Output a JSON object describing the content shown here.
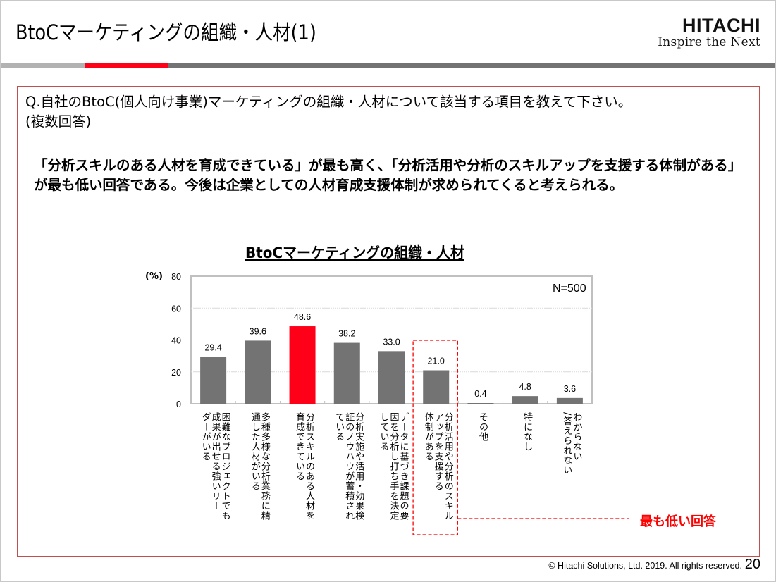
{
  "slide": {
    "title": "BtoCマーケティングの組織・人材(1)",
    "logo": {
      "name": "HITACHI",
      "tagline": "Inspire the Next"
    },
    "question": "Q.自社のBtoC(個人向け事業)マーケティングの組織・人材について該当する項目を教えて下さい。",
    "question_note": "(複数回答)",
    "summary": "「分析スキルのある人材を育成できている」が最も高く、「分析活用や分析のスキルアップを支援する体制がある」が最も低い回答である。今後は企業としての人材育成支援体制が求められてくると考えられる。",
    "annotation": "最も低い回答",
    "footer": "© Hitachi Solutions, Ltd. 2019. All rights reserved.",
    "page_number": "20"
  },
  "colors": {
    "bar": "#737373",
    "highlight_bar": "#ff0019",
    "accent_red": "#ff0000",
    "stripe_light": "#b2b2b2",
    "stripe_dark": "#737373",
    "box_border": "#c0504d"
  },
  "chart_data": {
    "type": "bar",
    "title": "BtoCマーケティングの組織・人材",
    "ylabel": "(%)",
    "sample_size": "N=500",
    "ylim": [
      0,
      80
    ],
    "yticks": [
      "0",
      "20",
      "40",
      "60",
      "80"
    ],
    "grid": true,
    "highlight_index": 2,
    "boxed_index": 5,
    "categories": [
      "困難なプロジェクトでも\n成果が出せる強いリー\nダーがいる",
      "多種多様な分析業務に精\n通した人材がいる",
      "分析スキルのある人材を\n育成できている",
      "分析実施や活用・効果検\n証のノウハウが蓄積され\nている",
      "データに基づき課題の要\n因を分析し打ち手を決定\nしている",
      "分析活用や分析のスキル\nアップを支援する\n体制がある",
      "その他",
      "特になし",
      "わからない\n/答えられない"
    ],
    "values": [
      29.4,
      39.6,
      48.6,
      38.2,
      33.0,
      21.0,
      0.4,
      4.8,
      3.6
    ],
    "value_labels": [
      "29.4",
      "39.6",
      "48.6",
      "38.2",
      "33.0",
      "21.0",
      "0.4",
      "4.8",
      "3.6"
    ]
  }
}
